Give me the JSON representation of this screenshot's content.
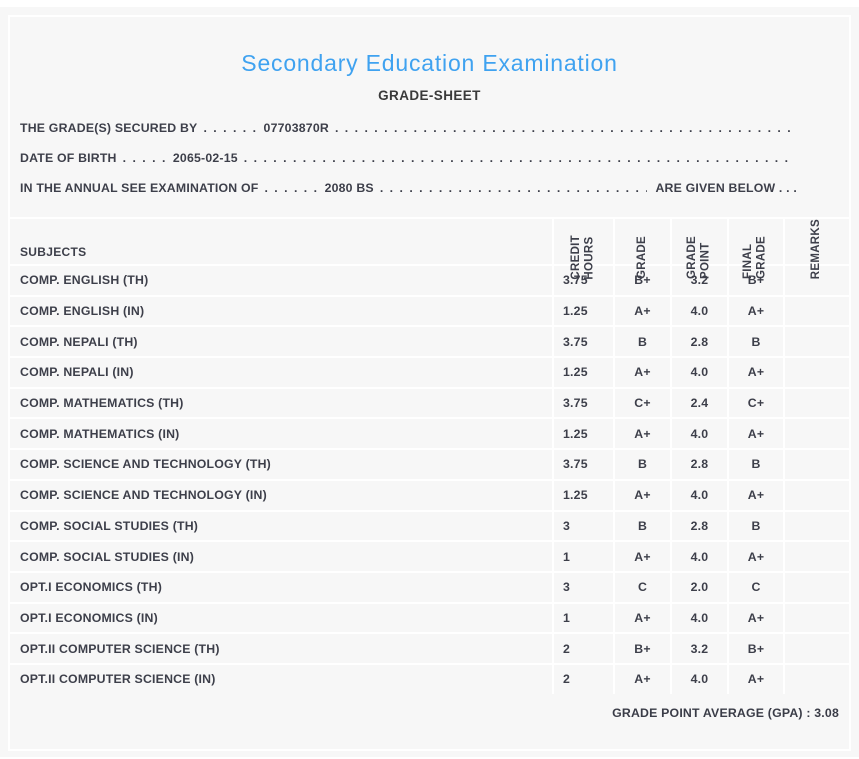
{
  "header": {
    "title": "Secondary Education Examination",
    "subtitle": "GRADE-SHEET"
  },
  "info_lines": [
    {
      "label": "THE GRADE(S) SECURED BY",
      "mid_dots": ". . . . . .",
      "value": "07703870R",
      "suffix": ""
    },
    {
      "label": "DATE OF BIRTH",
      "mid_dots": ". . . . .",
      "value": "2065-02-15",
      "suffix": ""
    },
    {
      "label": "IN THE ANNUAL SEE EXAMINATION OF",
      "mid_dots": ". . . . . .",
      "value": "2080 BS",
      "suffix": "ARE GIVEN BELOW . . ."
    }
  ],
  "dot_unit": ". ",
  "table": {
    "headers": {
      "subjects": "SUBJECTS",
      "credit_hours": "CREDIT\nHOURS",
      "grade": "GRADE",
      "grade_point": "GRADE\nPOINT",
      "final_grade": "FINAL\nGRADE",
      "remarks": "REMARKS"
    },
    "rows": [
      {
        "subject": "COMP. ENGLISH (TH)",
        "credit_hours": "3.75",
        "grade": "B+",
        "grade_point": "3.2",
        "final_grade": "B+",
        "remarks": ""
      },
      {
        "subject": "COMP. ENGLISH (IN)",
        "credit_hours": "1.25",
        "grade": "A+",
        "grade_point": "4.0",
        "final_grade": "A+",
        "remarks": ""
      },
      {
        "subject": "COMP. NEPALI (TH)",
        "credit_hours": "3.75",
        "grade": "B",
        "grade_point": "2.8",
        "final_grade": "B",
        "remarks": ""
      },
      {
        "subject": "COMP. NEPALI (IN)",
        "credit_hours": "1.25",
        "grade": "A+",
        "grade_point": "4.0",
        "final_grade": "A+",
        "remarks": ""
      },
      {
        "subject": "COMP. MATHEMATICS (TH)",
        "credit_hours": "3.75",
        "grade": "C+",
        "grade_point": "2.4",
        "final_grade": "C+",
        "remarks": ""
      },
      {
        "subject": "COMP. MATHEMATICS (IN)",
        "credit_hours": "1.25",
        "grade": "A+",
        "grade_point": "4.0",
        "final_grade": "A+",
        "remarks": ""
      },
      {
        "subject": "COMP. SCIENCE AND TECHNOLOGY (TH)",
        "credit_hours": "3.75",
        "grade": "B",
        "grade_point": "2.8",
        "final_grade": "B",
        "remarks": ""
      },
      {
        "subject": "COMP. SCIENCE AND TECHNOLOGY (IN)",
        "credit_hours": "1.25",
        "grade": "A+",
        "grade_point": "4.0",
        "final_grade": "A+",
        "remarks": ""
      },
      {
        "subject": "COMP. SOCIAL STUDIES (TH)",
        "credit_hours": "3",
        "grade": "B",
        "grade_point": "2.8",
        "final_grade": "B",
        "remarks": ""
      },
      {
        "subject": "COMP. SOCIAL STUDIES (IN)",
        "credit_hours": "1",
        "grade": "A+",
        "grade_point": "4.0",
        "final_grade": "A+",
        "remarks": ""
      },
      {
        "subject": "OPT.I ECONOMICS (TH)",
        "credit_hours": "3",
        "grade": "C",
        "grade_point": "2.0",
        "final_grade": "C",
        "remarks": ""
      },
      {
        "subject": "OPT.I ECONOMICS (IN)",
        "credit_hours": "1",
        "grade": "A+",
        "grade_point": "4.0",
        "final_grade": "A+",
        "remarks": ""
      },
      {
        "subject": "OPT.II COMPUTER SCIENCE (TH)",
        "credit_hours": "2",
        "grade": "B+",
        "grade_point": "3.2",
        "final_grade": "B+",
        "remarks": ""
      },
      {
        "subject": "OPT.II COMPUTER SCIENCE (IN)",
        "credit_hours": "2",
        "grade": "A+",
        "grade_point": "4.0",
        "final_grade": "A+",
        "remarks": ""
      }
    ]
  },
  "footer": {
    "gpa_text": "GRADE POINT AVERAGE (GPA) : 3.08"
  },
  "colors": {
    "accent_blue": "#3fa2f0",
    "page_bg": "#f7f7f7",
    "separator": "#ffffff",
    "text": "#3d3f4a"
  }
}
